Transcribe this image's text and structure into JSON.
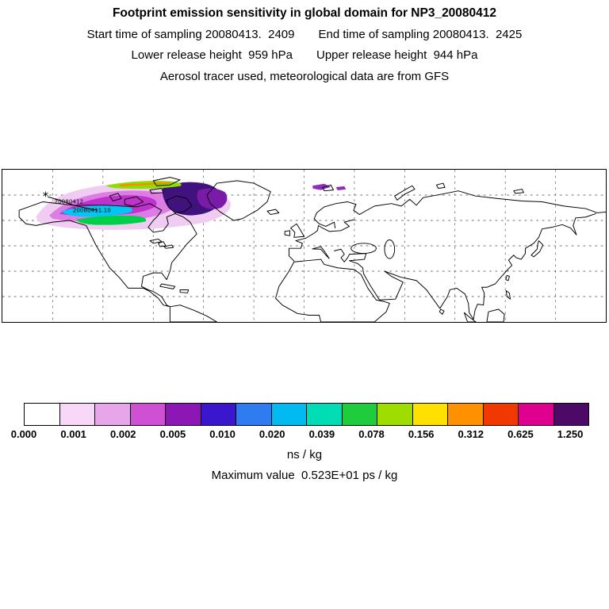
{
  "header": {
    "title": "Footprint emission sensitivity in global domain for NP3_20080412",
    "start_time": "Start time of sampling 20080413.  2409",
    "end_time": "End time of sampling 20080413.  2425",
    "lower_release": "Lower release height  959 hPa",
    "upper_release": "Upper release height  944 hPa",
    "tracer_line": "Aerosol tracer used, meteorological data are from GFS"
  },
  "map": {
    "plume_colors": {
      "pale": "#f0ccf2",
      "orchid": "#dc7ce4",
      "magenta": "#c032cc",
      "indigo": "#40127e",
      "purple": "#7a1ba8",
      "cyan": "#00c6f2",
      "green": "#00cf4a",
      "yellow_green": "#8ce000",
      "orange": "#ff8800",
      "violet_specks": "#8f2cc0"
    },
    "annotations": [
      "20080412",
      "20080411.10"
    ],
    "release_marker": "*"
  },
  "colorbar": {
    "tick_labels": [
      "0.000",
      "0.001",
      "0.002",
      "0.005",
      "0.010",
      "0.020",
      "0.039",
      "0.078",
      "0.156",
      "0.312",
      "0.625",
      "1.250"
    ],
    "colors": [
      "#ffffff",
      "#f8d8f8",
      "#e8a6ea",
      "#d050d4",
      "#8c17b4",
      "#3a16cc",
      "#2e7cf0",
      "#00baf0",
      "#00dcb4",
      "#1ecc3c",
      "#9fdd00",
      "#ffe000",
      "#ff9000",
      "#f03800",
      "#e00090",
      "#4c0a66"
    ],
    "units": "ns / kg"
  },
  "footer": {
    "max_value_line": "Maximum value  0.523E+01 ps / kg"
  },
  "chart_data": {
    "type": "heatmap",
    "title": "Footprint emission sensitivity in global domain for NP3_20080412",
    "subtitle_lines": [
      "Start time of sampling 20080413.  2409     End time of sampling 20080413.  2425",
      "Lower release height  959 hPa       Upper release height  944 hPa",
      "Aerosol tracer used, meteorological data are from GFS"
    ],
    "projection": "equirectangular world map, longitude -180 to 180, latitude 0 to 90",
    "grid": "dashed graticule every 30 deg longitude and 15 deg latitude",
    "colorbar_levels": [
      0.0,
      0.001,
      0.002,
      0.005,
      0.01,
      0.02,
      0.039,
      0.078,
      0.156,
      0.312,
      0.625,
      1.25
    ],
    "units": "ns / kg",
    "max_value": "0.523E+01 ps / kg",
    "data_region": "High footprint sensitivity plume over Alaska, northern Canada, Canadian Arctic Archipelago and west Greenland; peak (dark purple/indigo) near Baffin Bay; cyan and green filaments across central Canada; small violet patches north of Scandinavia",
    "legend_position": "horizontal colorbar below map"
  }
}
